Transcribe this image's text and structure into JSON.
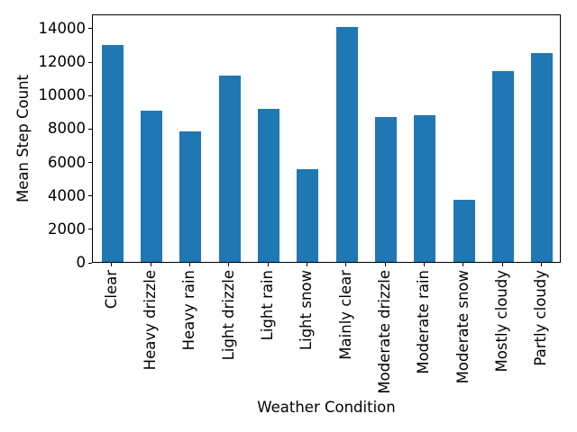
{
  "chart_data": {
    "type": "bar",
    "title": "",
    "xlabel": "Weather Condition",
    "ylabel": "Mean Step Count",
    "categories": [
      "Clear",
      "Heavy drizzle",
      "Heavy rain",
      "Light drizzle",
      "Light rain",
      "Light snow",
      "Mainly clear",
      "Moderate drizzle",
      "Moderate rain",
      "Moderate snow",
      "Mostly cloudy",
      "Partly cloudy"
    ],
    "values": [
      13000,
      9050,
      7800,
      11150,
      9150,
      5550,
      14050,
      8650,
      8800,
      3700,
      11400,
      12500
    ],
    "yticks": [
      0,
      2000,
      4000,
      6000,
      8000,
      10000,
      12000,
      14000
    ],
    "ylim": [
      0,
      14860
    ],
    "bar_color": "#1f77b4",
    "axis_color": "#000000",
    "grid": false,
    "legend": null
  }
}
